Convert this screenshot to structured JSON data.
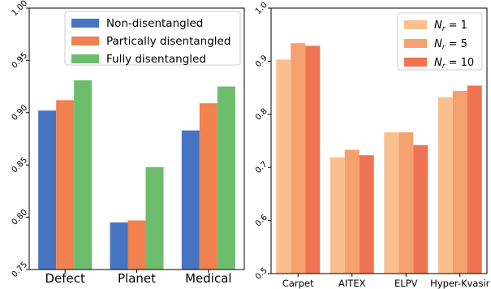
{
  "chart_data": [
    {
      "type": "bar",
      "categories": [
        "Defect",
        "Planet",
        "Medical"
      ],
      "series": [
        {
          "name": "Non-disentangled",
          "color": "#4674c1",
          "values": [
            0.902,
            0.795,
            0.883
          ]
        },
        {
          "name": "Partically disentangled",
          "color": "#ef8250",
          "values": [
            0.912,
            0.797,
            0.909
          ]
        },
        {
          "name": "Fully disentangled",
          "color": "#6cbd6c",
          "values": [
            0.931,
            0.848,
            0.925
          ]
        }
      ],
      "ylim": [
        0.75,
        1.0
      ],
      "yticks": [
        "0.75",
        "0.80",
        "0.85",
        "0.90",
        "0.95",
        "1.00"
      ],
      "legend_position": "top-right",
      "grid": false
    },
    {
      "type": "bar",
      "categories": [
        "Carpet",
        "AITEX",
        "ELPV",
        "Hyper-Kvasir"
      ],
      "series": [
        {
          "name": "N_r = 1",
          "sub": "r",
          "value_text": "1",
          "color": "#f9c08e",
          "values": [
            0.903,
            0.719,
            0.766,
            0.832
          ]
        },
        {
          "name": "N_r = 5",
          "sub": "r",
          "value_text": "5",
          "color": "#f5a06f",
          "values": [
            0.934,
            0.733,
            0.766,
            0.844
          ]
        },
        {
          "name": "N_r = 10",
          "sub": "r",
          "value_text": "10",
          "color": "#f07353",
          "values": [
            0.929,
            0.723,
            0.742,
            0.854
          ]
        }
      ],
      "ylim": [
        0.5,
        1.0
      ],
      "yticks": [
        "0.5",
        "0.6",
        "0.7",
        "0.8",
        "0.9",
        "1.0"
      ],
      "legend_position": "top-right",
      "grid": false
    }
  ]
}
